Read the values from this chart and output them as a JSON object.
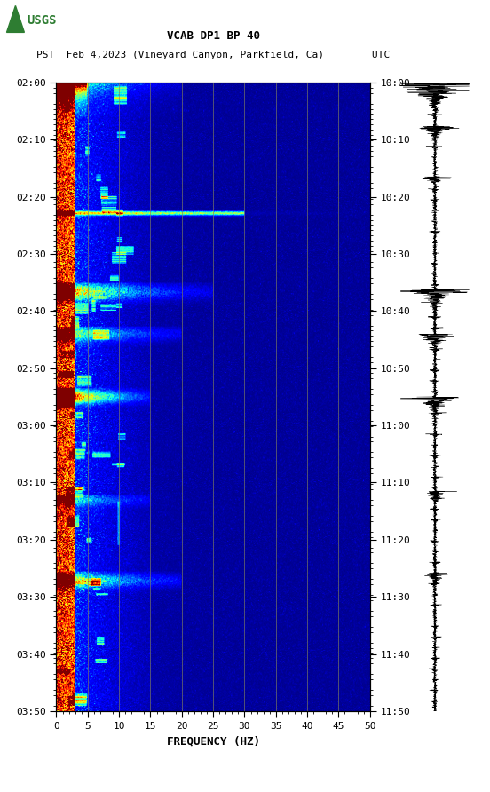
{
  "title_line1": "VCAB DP1 BP 40",
  "title_line2": "PST  Feb 4,2023 (Vineyard Canyon, Parkfield, Ca)        UTC",
  "xlabel": "FREQUENCY (HZ)",
  "freq_min": 0,
  "freq_max": 50,
  "freq_ticks": [
    0,
    5,
    10,
    15,
    20,
    25,
    30,
    35,
    40,
    45,
    50
  ],
  "time_left_labels": [
    "02:00",
    "02:10",
    "02:20",
    "02:30",
    "02:40",
    "02:50",
    "03:00",
    "03:10",
    "03:20",
    "03:30",
    "03:40",
    "03:50"
  ],
  "time_right_labels": [
    "10:00",
    "10:10",
    "10:20",
    "10:30",
    "10:40",
    "10:50",
    "11:00",
    "11:10",
    "11:20",
    "11:30",
    "11:40",
    "11:50"
  ],
  "n_time_steps": 720,
  "n_freq_bins": 500,
  "background_color": "#ffffff",
  "spectrogram_cmap": "jet",
  "grid_color": "#808060",
  "grid_linewidth": 0.6,
  "tick_label_fontsize": 8,
  "title_fontsize": 9
}
